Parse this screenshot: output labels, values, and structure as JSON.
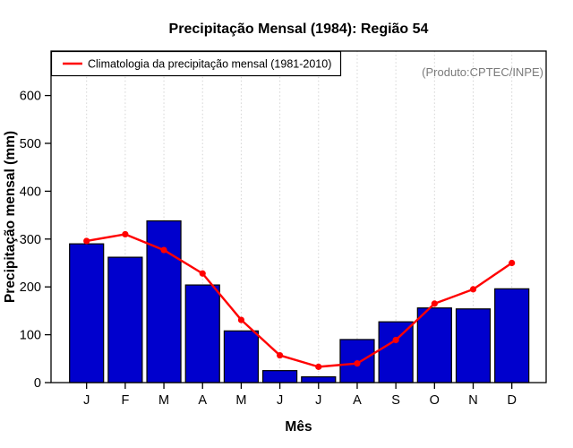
{
  "title": "Precipitação Mensal (1984): Região 54",
  "legend": {
    "label": "Climatologia da precipitação mensal (1981-2010)"
  },
  "annotation": "(Produto:CPTEC/INPE)",
  "axes": {
    "xlabel": "Mês",
    "ylabel": "Precipitação mensal (mm)"
  },
  "chart_data": {
    "type": "bar",
    "title": "Precipitação Mensal (1984): Região 54",
    "categories": [
      "J",
      "F",
      "M",
      "A",
      "M",
      "J",
      "J",
      "A",
      "S",
      "O",
      "N",
      "D"
    ],
    "series": [
      {
        "name": "Precipitação mensal (1984)",
        "type": "bar",
        "values": [
          290,
          262,
          338,
          204,
          108,
          25,
          12,
          90,
          127,
          156,
          154,
          196
        ]
      },
      {
        "name": "Climatologia da precipitação mensal (1981-2010)",
        "type": "line",
        "values": [
          296,
          310,
          277,
          228,
          131,
          57,
          33,
          40,
          89,
          165,
          195,
          250
        ]
      }
    ],
    "xlabel": "Mês",
    "ylabel": "Precipitação mensal (mm)",
    "yticks": [
      0,
      100,
      200,
      300,
      400,
      500,
      600
    ],
    "ylim": [
      0,
      693
    ],
    "grid": "vertical dotted line at each month",
    "legend_position": "top-left inside plot",
    "annotation": "(Produto:CPTEC/INPE)",
    "colors": {
      "bar_fill": "#0000cd",
      "bar_border": "#000000",
      "line": "#ff0000",
      "grid": "#d4d4d4",
      "axis": "#000000",
      "annotation_text": "#7a7a7a"
    }
  }
}
